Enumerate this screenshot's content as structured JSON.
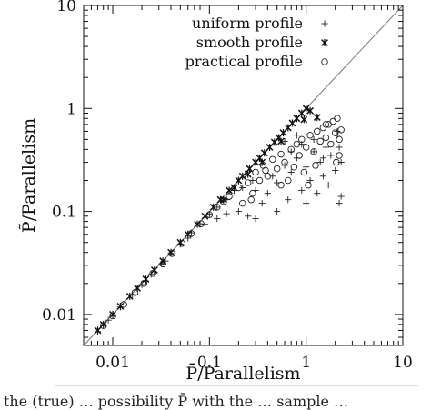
{
  "chart_data": {
    "type": "scatter",
    "xscale": "log",
    "yscale": "log",
    "xlim": [
      0.005,
      10
    ],
    "ylim": [
      0.005,
      10
    ],
    "xlabel": "P̄/Parallelism",
    "ylabel": "P̃/Parallelism",
    "xticks": [
      "0.01",
      "0.1",
      "1",
      "10"
    ],
    "yticks": [
      "0.01",
      "0.1",
      "1",
      "10"
    ],
    "diagonal": true,
    "legend_position": "top-right",
    "series": [
      {
        "name": "uniform profile",
        "marker": "plus",
        "points": [
          [
            0.007,
            0.0068
          ],
          [
            0.009,
            0.0088
          ],
          [
            0.012,
            0.0118
          ],
          [
            0.016,
            0.0156
          ],
          [
            0.02,
            0.0195
          ],
          [
            0.025,
            0.0245
          ],
          [
            0.032,
            0.031
          ],
          [
            0.04,
            0.039
          ],
          [
            0.05,
            0.048
          ],
          [
            0.065,
            0.062
          ],
          [
            0.08,
            0.076
          ],
          [
            0.1,
            0.094
          ],
          [
            0.12,
            0.11
          ],
          [
            0.15,
            0.13
          ],
          [
            0.18,
            0.16
          ],
          [
            0.2,
            0.1
          ],
          [
            0.22,
            0.17
          ],
          [
            0.25,
            0.09
          ],
          [
            0.28,
            0.2
          ],
          [
            0.3,
            0.085
          ],
          [
            0.35,
            0.12
          ],
          [
            0.4,
            0.15
          ],
          [
            0.45,
            0.22
          ],
          [
            0.5,
            0.19
          ],
          [
            0.6,
            0.28
          ],
          [
            0.65,
            0.13
          ],
          [
            0.7,
            0.24
          ],
          [
            0.8,
            0.33
          ],
          [
            0.9,
            0.16
          ],
          [
            1.0,
            0.27
          ],
          [
            1.1,
            0.2
          ],
          [
            1.2,
            0.38
          ],
          [
            1.3,
            0.15
          ],
          [
            1.4,
            0.3
          ],
          [
            1.5,
            0.22
          ],
          [
            1.6,
            0.42
          ],
          [
            1.7,
            0.18
          ],
          [
            1.8,
            0.35
          ],
          [
            2.0,
            0.25
          ],
          [
            2.1,
            0.55
          ],
          [
            2.2,
            0.12
          ],
          [
            2.3,
            0.3
          ],
          [
            2.2,
            0.42
          ],
          [
            2.1,
            0.6
          ],
          [
            2.3,
            0.14
          ],
          [
            1.0,
            0.12
          ],
          [
            0.5,
            0.1
          ],
          [
            0.3,
            0.16
          ],
          [
            0.15,
            0.095
          ],
          [
            0.12,
            0.085
          ],
          [
            0.09,
            0.075
          ],
          [
            0.06,
            0.055
          ],
          [
            0.035,
            0.033
          ],
          [
            0.022,
            0.021
          ],
          [
            0.8,
            0.55
          ],
          [
            0.9,
            0.45
          ],
          [
            0.7,
            0.38
          ],
          [
            1.2,
            0.5
          ],
          [
            1.5,
            0.33
          ],
          [
            0.6,
            0.48
          ]
        ]
      },
      {
        "name": "smooth profile",
        "marker": "star",
        "points": [
          [
            0.007,
            0.007
          ],
          [
            0.008,
            0.008
          ],
          [
            0.01,
            0.01
          ],
          [
            0.012,
            0.012
          ],
          [
            0.015,
            0.015
          ],
          [
            0.018,
            0.018
          ],
          [
            0.022,
            0.022
          ],
          [
            0.027,
            0.027
          ],
          [
            0.033,
            0.033
          ],
          [
            0.04,
            0.04
          ],
          [
            0.05,
            0.05
          ],
          [
            0.06,
            0.06
          ],
          [
            0.075,
            0.075
          ],
          [
            0.09,
            0.09
          ],
          [
            0.11,
            0.11
          ],
          [
            0.13,
            0.13
          ],
          [
            0.16,
            0.16
          ],
          [
            0.2,
            0.2
          ],
          [
            0.22,
            0.22
          ],
          [
            0.26,
            0.26
          ],
          [
            0.3,
            0.3
          ],
          [
            0.33,
            0.33
          ],
          [
            0.37,
            0.37
          ],
          [
            0.42,
            0.42
          ],
          [
            0.47,
            0.47
          ],
          [
            0.52,
            0.52
          ],
          [
            0.58,
            0.58
          ],
          [
            0.65,
            0.65
          ],
          [
            0.72,
            0.72
          ],
          [
            0.8,
            0.8
          ],
          [
            0.9,
            0.9
          ],
          [
            1.0,
            1.0
          ],
          [
            1.1,
            0.95
          ],
          [
            1.3,
            0.82
          ],
          [
            0.95,
            0.78
          ],
          [
            0.55,
            0.48
          ],
          [
            0.35,
            0.3
          ],
          [
            0.25,
            0.23
          ],
          [
            0.18,
            0.17
          ],
          [
            0.14,
            0.13
          ]
        ]
      },
      {
        "name": "practical profile",
        "marker": "circle",
        "points": [
          [
            0.008,
            0.0078
          ],
          [
            0.01,
            0.0097
          ],
          [
            0.013,
            0.0125
          ],
          [
            0.017,
            0.0163
          ],
          [
            0.021,
            0.02
          ],
          [
            0.026,
            0.025
          ],
          [
            0.033,
            0.031
          ],
          [
            0.041,
            0.039
          ],
          [
            0.052,
            0.049
          ],
          [
            0.065,
            0.061
          ],
          [
            0.082,
            0.076
          ],
          [
            0.1,
            0.093
          ],
          [
            0.12,
            0.11
          ],
          [
            0.14,
            0.125
          ],
          [
            0.16,
            0.14
          ],
          [
            0.2,
            0.17
          ],
          [
            0.22,
            0.12
          ],
          [
            0.25,
            0.19
          ],
          [
            0.28,
            0.15
          ],
          [
            0.3,
            0.24
          ],
          [
            0.33,
            0.2
          ],
          [
            0.36,
            0.28
          ],
          [
            0.4,
            0.22
          ],
          [
            0.45,
            0.32
          ],
          [
            0.5,
            0.26
          ],
          [
            0.55,
            0.36
          ],
          [
            0.6,
            0.3
          ],
          [
            0.65,
            0.2
          ],
          [
            0.7,
            0.4
          ],
          [
            0.75,
            0.27
          ],
          [
            0.8,
            0.45
          ],
          [
            0.85,
            0.35
          ],
          [
            0.9,
            0.5
          ],
          [
            1.0,
            0.42
          ],
          [
            1.05,
            0.18
          ],
          [
            1.1,
            0.55
          ],
          [
            1.2,
            0.38
          ],
          [
            1.3,
            0.6
          ],
          [
            1.4,
            0.48
          ],
          [
            1.5,
            0.65
          ],
          [
            1.6,
            0.52
          ],
          [
            1.7,
            0.7
          ],
          [
            1.8,
            0.45
          ],
          [
            1.9,
            0.75
          ],
          [
            2.0,
            0.58
          ],
          [
            2.1,
            0.8
          ],
          [
            2.2,
            0.35
          ],
          [
            2.2,
            0.5
          ],
          [
            2.3,
            0.62
          ],
          [
            1.25,
            0.28
          ],
          [
            0.95,
            0.24
          ],
          [
            0.55,
            0.18
          ],
          [
            0.38,
            0.25
          ],
          [
            0.27,
            0.13
          ],
          [
            2.05,
            0.3
          ],
          [
            1.6,
            0.7
          ]
        ]
      }
    ]
  },
  "caption": "the (true) … possibility P̄ with the … sample …"
}
